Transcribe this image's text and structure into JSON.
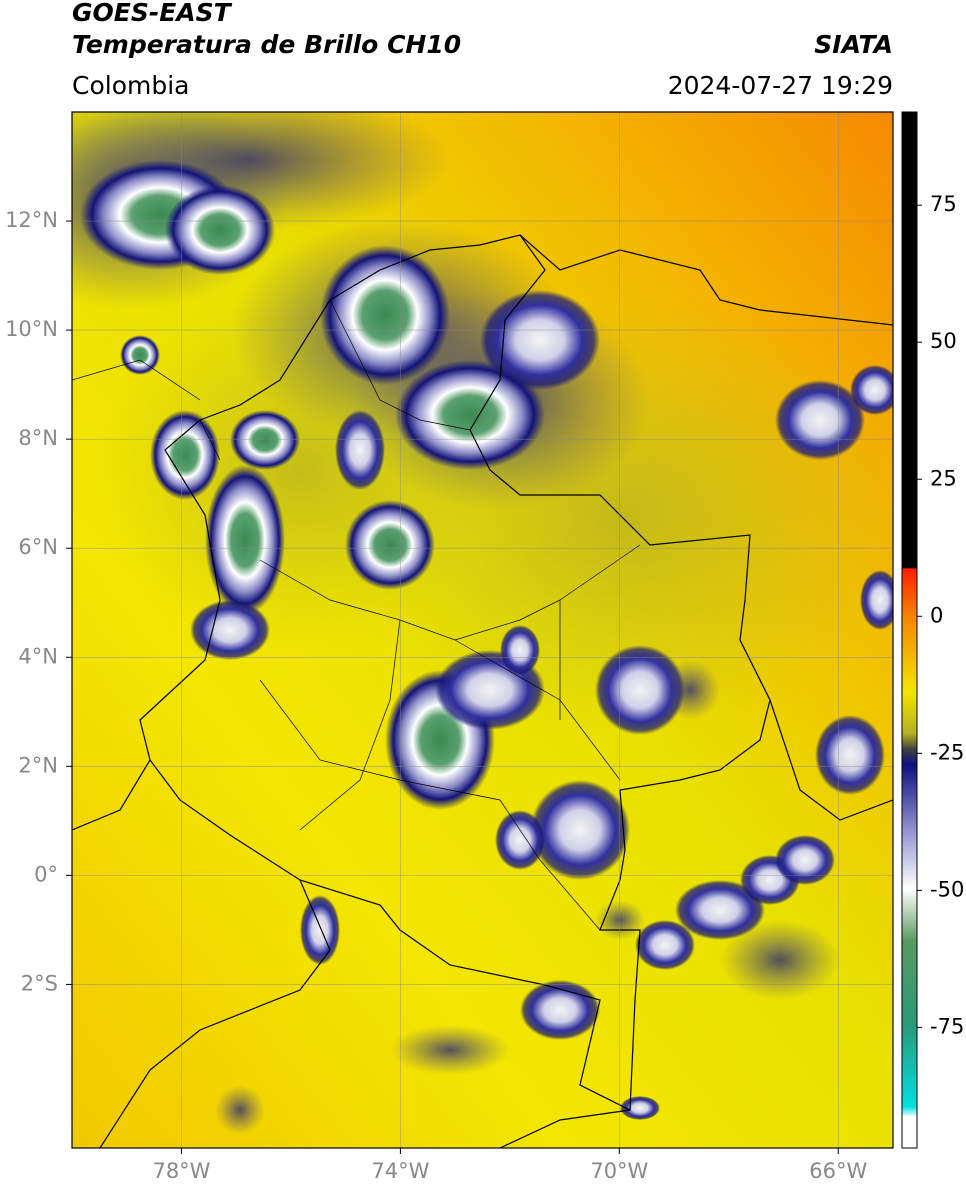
{
  "header": {
    "title": "GOES-EAST",
    "subtitle": "Temperatura de Brillo CH10",
    "region": "Colombia",
    "source": "SIATA",
    "timestamp": "2024-07-27 19:29"
  },
  "map": {
    "xlim": [
      -80,
      -65
    ],
    "ylim": [
      -5,
      14
    ],
    "xticks": [
      {
        "value": -78,
        "label": "78°W"
      },
      {
        "value": -74,
        "label": "74°W"
      },
      {
        "value": -70,
        "label": "70°W"
      },
      {
        "value": -66,
        "label": "66°W"
      }
    ],
    "yticks": [
      {
        "value": 12,
        "label": "12°N"
      },
      {
        "value": 10,
        "label": "10°N"
      },
      {
        "value": 8,
        "label": "8°N"
      },
      {
        "value": 6,
        "label": "6°N"
      },
      {
        "value": 4,
        "label": "4°N"
      },
      {
        "value": 2,
        "label": "2°N"
      },
      {
        "value": 0,
        "label": "0°"
      },
      {
        "value": -2,
        "label": "2°S"
      }
    ],
    "grid": true
  },
  "colorbar": {
    "lim": [
      -97,
      92
    ],
    "ticks": [
      75,
      50,
      25,
      0,
      -25,
      -50,
      -75
    ]
  }
}
